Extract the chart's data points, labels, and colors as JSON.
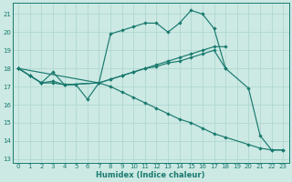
{
  "title": "",
  "xlabel": "Humidex (Indice chaleur)",
  "background_color": "#cce9e4",
  "grid_color": "#b0d8d0",
  "line_color": "#1a7a6e",
  "xlim": [
    -0.5,
    23.5
  ],
  "ylim": [
    12.8,
    21.6
  ],
  "yticks": [
    13,
    14,
    15,
    16,
    17,
    18,
    19,
    20,
    21
  ],
  "xticks": [
    0,
    1,
    2,
    3,
    4,
    5,
    6,
    7,
    8,
    9,
    10,
    11,
    12,
    13,
    14,
    15,
    16,
    17,
    18,
    19,
    20,
    21,
    22,
    23
  ],
  "series": [
    {
      "x": [
        0,
        1,
        2,
        3,
        4,
        5,
        6,
        7,
        8,
        9,
        10,
        11,
        12,
        13,
        14,
        15,
        16,
        17,
        18,
        20,
        21,
        22,
        23
      ],
      "y": [
        18.0,
        17.6,
        17.2,
        17.8,
        17.1,
        17.1,
        16.3,
        17.2,
        19.9,
        20.1,
        20.3,
        20.5,
        20.5,
        20.0,
        20.5,
        21.2,
        21.0,
        20.2,
        18.0,
        16.9,
        14.3,
        13.5,
        13.5
      ]
    },
    {
      "x": [
        0,
        1,
        2,
        3,
        4,
        7,
        8,
        9,
        10,
        11,
        12,
        13,
        14,
        15,
        16,
        17,
        18
      ],
      "y": [
        18.0,
        17.6,
        17.2,
        17.3,
        17.1,
        17.2,
        17.4,
        17.6,
        17.8,
        18.0,
        18.2,
        18.4,
        18.6,
        18.8,
        19.0,
        19.2,
        19.2
      ]
    },
    {
      "x": [
        0,
        1,
        2,
        3,
        4,
        7,
        8,
        9,
        10,
        11,
        12,
        13,
        14,
        15,
        16,
        17,
        18
      ],
      "y": [
        18.0,
        17.6,
        17.2,
        17.2,
        17.1,
        17.2,
        17.4,
        17.6,
        17.8,
        18.0,
        18.1,
        18.3,
        18.4,
        18.6,
        18.8,
        19.0,
        18.0
      ]
    },
    {
      "x": [
        0,
        7,
        8,
        9,
        10,
        11,
        12,
        13,
        14,
        15,
        16,
        17,
        18,
        20,
        21,
        22,
        23
      ],
      "y": [
        18.0,
        17.2,
        17.0,
        16.7,
        16.4,
        16.1,
        15.8,
        15.5,
        15.2,
        15.0,
        14.7,
        14.4,
        14.2,
        13.8,
        13.6,
        13.5,
        13.5
      ]
    }
  ]
}
